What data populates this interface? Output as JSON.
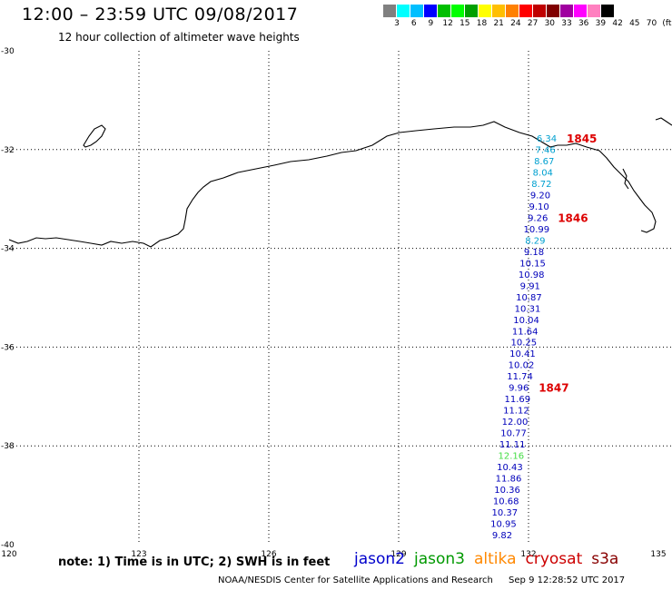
{
  "title": "12:00 – 23:59 UTC 09/08/2017",
  "subtitle": "12 hour collection of altimeter wave heights",
  "scale": {
    "colors": [
      "#808080",
      "#00ffff",
      "#00bfff",
      "#0000ff",
      "#00bf00",
      "#00ff00",
      "#00a000",
      "#ffff00",
      "#ffbf00",
      "#ff8000",
      "#ff0000",
      "#c00000",
      "#800000",
      "#a000a0",
      "#ff00ff",
      "#ff80c0",
      "#000000"
    ],
    "labels": [
      "3",
      "6",
      "9",
      "12",
      "15",
      "18",
      "21",
      "24",
      "27",
      "30",
      "33",
      "36",
      "39",
      "42",
      "45",
      "70",
      "(ft)"
    ]
  },
  "axes": {
    "lon_ticks": [
      "120",
      "123",
      "126",
      "129",
      "132",
      "135"
    ],
    "lat_ticks": [
      "-30",
      "-32",
      "-34",
      "-36",
      "-38",
      "-40"
    ]
  },
  "track": {
    "color_default": "#0000bb",
    "points": [
      {
        "v": "6.34",
        "c": "#00a0d0"
      },
      {
        "v": "7.46",
        "c": "#00a0d0"
      },
      {
        "v": "8.67",
        "c": "#00a0d0"
      },
      {
        "v": "8.04",
        "c": "#00a0d0"
      },
      {
        "v": "8.72",
        "c": "#00a0d0"
      },
      {
        "v": "9.20",
        "c": "#0000bb"
      },
      {
        "v": "9.10",
        "c": "#0000bb"
      },
      {
        "v": "9.26",
        "c": "#0000bb"
      },
      {
        "v": "10.99",
        "c": "#0000bb"
      },
      {
        "v": "8.29",
        "c": "#00a0d0"
      },
      {
        "v": "9.18",
        "c": "#0000bb"
      },
      {
        "v": "10.15",
        "c": "#0000bb"
      },
      {
        "v": "10.98",
        "c": "#0000bb"
      },
      {
        "v": "9.91",
        "c": "#0000bb"
      },
      {
        "v": "10.87",
        "c": "#0000bb"
      },
      {
        "v": "10.31",
        "c": "#0000bb"
      },
      {
        "v": "10.04",
        "c": "#0000bb"
      },
      {
        "v": "11.64",
        "c": "#0000bb"
      },
      {
        "v": "10.25",
        "c": "#0000bb"
      },
      {
        "v": "10.41",
        "c": "#0000bb"
      },
      {
        "v": "10.02",
        "c": "#0000bb"
      },
      {
        "v": "11.74",
        "c": "#0000bb"
      },
      {
        "v": "9.96",
        "c": "#0000bb"
      },
      {
        "v": "11.69",
        "c": "#0000bb"
      },
      {
        "v": "11.12",
        "c": "#0000bb"
      },
      {
        "v": "12.00",
        "c": "#0000bb"
      },
      {
        "v": "10.77",
        "c": "#0000bb"
      },
      {
        "v": "11.11",
        "c": "#0000bb"
      },
      {
        "v": "12.16",
        "c": "#44dd44"
      },
      {
        "v": "10.43",
        "c": "#0000bb"
      },
      {
        "v": "11.86",
        "c": "#0000bb"
      },
      {
        "v": "10.36",
        "c": "#0000bb"
      },
      {
        "v": "10.68",
        "c": "#0000bb"
      },
      {
        "v": "10.37",
        "c": "#0000bb"
      },
      {
        "v": "10.95",
        "c": "#0000bb"
      },
      {
        "v": "9.82",
        "c": "#0000bb"
      }
    ]
  },
  "times": [
    {
      "label": "1845",
      "after_index": 0
    },
    {
      "label": "1846",
      "after_index": 7
    },
    {
      "label": "1847",
      "after_index": 22
    }
  ],
  "note": "note:  1) Time is in UTC;  2) SWH is in feet",
  "satellites": [
    {
      "name": "jason2",
      "color": "#0000cc"
    },
    {
      "name": "jason3",
      "color": "#009900"
    },
    {
      "name": "altika",
      "color": "#ff8800"
    },
    {
      "name": "cryosat",
      "color": "#cc0000"
    },
    {
      "name": "s3a",
      "color": "#880000"
    }
  ],
  "credit": "NOAA/NESDIS Center for Satellite Applications and Research",
  "timestamp": "Sep  9 12:28:52 UTC 2017"
}
